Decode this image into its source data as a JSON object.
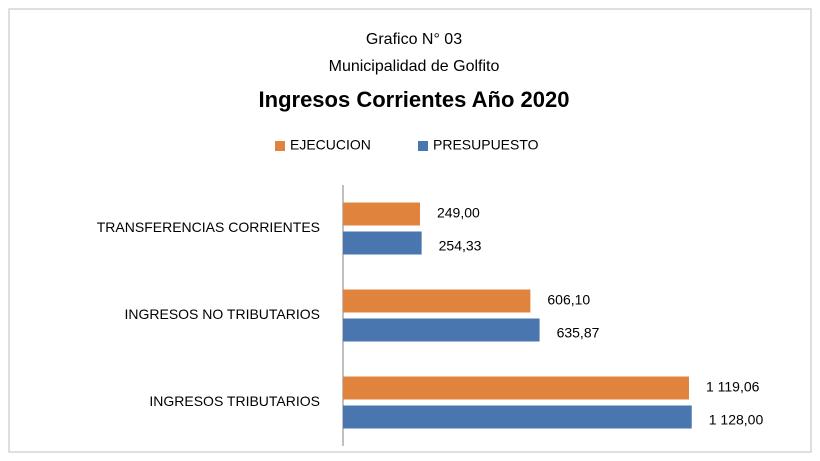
{
  "chart_data": {
    "type": "hbar",
    "title": "Grafico N° 03",
    "subtitle": "Municipalidad de Golfito",
    "heading": "Ingresos Corrientes Año 2020",
    "categories": [
      "TRANSFERENCIAS  CORRIENTES",
      "INGRESOS NO TRIBUTARIOS",
      "INGRESOS TRIBUTARIOS"
    ],
    "series": [
      {
        "name": "EJECUCION",
        "color": "#e0843d",
        "values": [
          249.0,
          606.1,
          1119.06
        ],
        "value_labels": [
          "249,00",
          "606,10",
          "1 119,06"
        ]
      },
      {
        "name": "PRESUPUESTO",
        "color": "#4a76b0",
        "values": [
          254.33,
          635.87,
          1128.0
        ],
        "value_labels": [
          "254,33",
          "635,87",
          "1 128,00"
        ]
      }
    ],
    "xlim": [
      0,
      1200
    ],
    "legend": "top"
  }
}
